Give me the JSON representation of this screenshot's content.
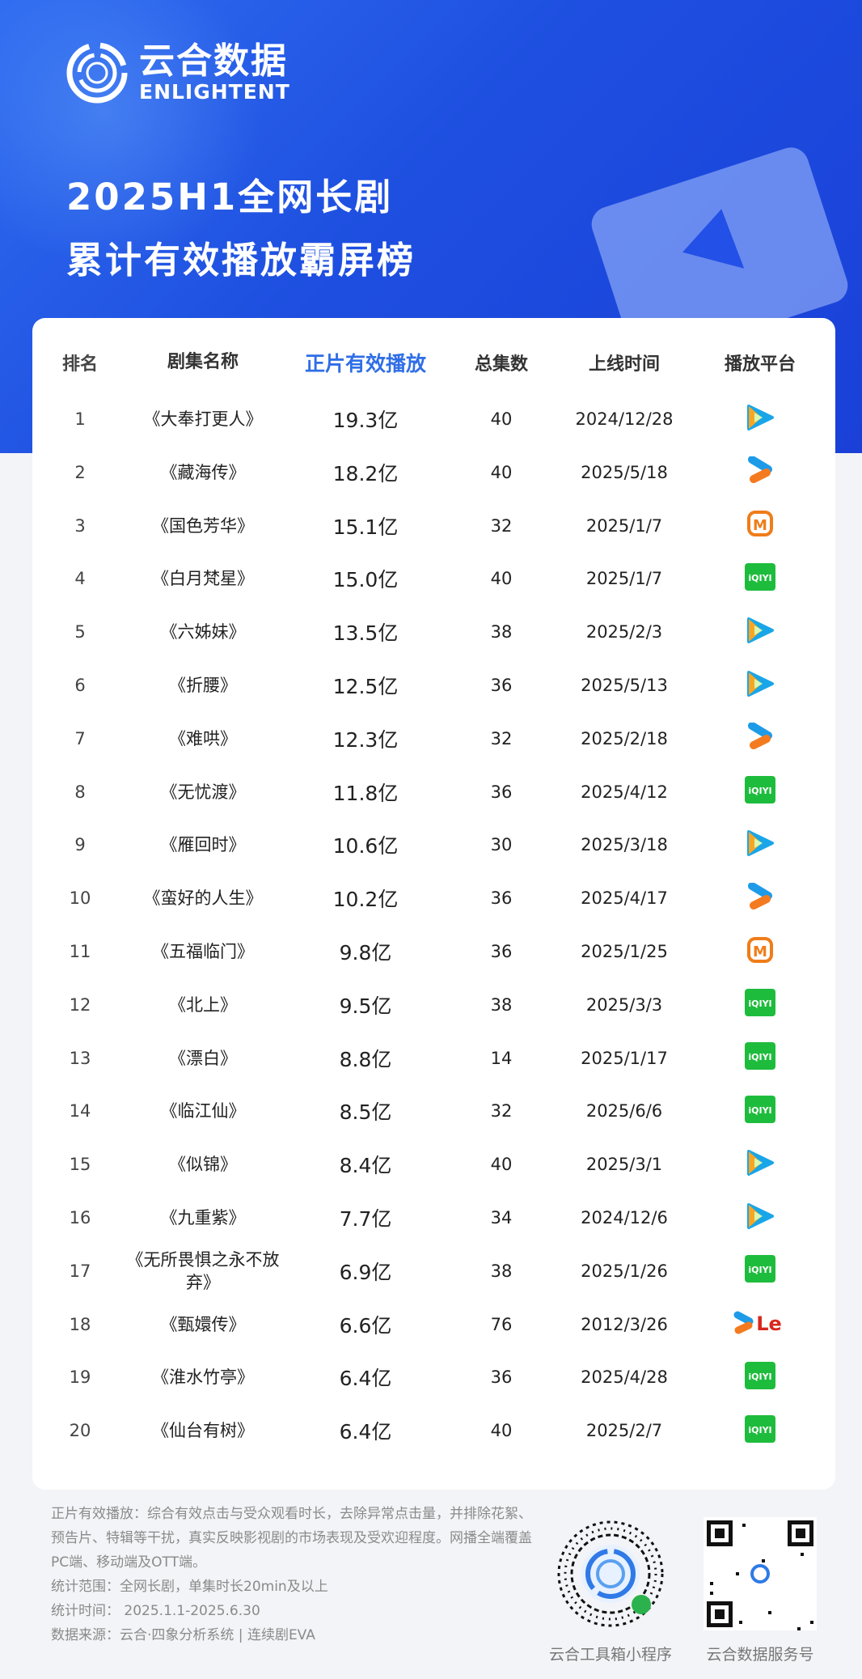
{
  "brand": {
    "name_cn": "云合数据",
    "name_en": "ENLIGHTENT"
  },
  "title": {
    "line1": "2025H1全网长剧",
    "line2": "累计有效播放霸屏榜"
  },
  "colors": {
    "header_bg": "#1e4fe0",
    "highlight": "#2f6ee6",
    "iqiyi": "#1ebc3c",
    "tencent": "#19a6e8",
    "youku": "#1e9be8",
    "mango": "#ef7d1a",
    "letv": "#d6281f"
  },
  "table": {
    "headers": [
      "排名",
      "剧集名称",
      "正片有效播放",
      "总集数",
      "上线时间",
      "播放平台"
    ],
    "rows": [
      {
        "rank": "1",
        "name": "《大奉打更人》",
        "plays": "19.3亿",
        "episodes": "40",
        "date": "2024/12/28",
        "platform": "tencent-video-icon"
      },
      {
        "rank": "2",
        "name": "《藏海传》",
        "plays": "18.2亿",
        "episodes": "40",
        "date": "2025/5/18",
        "platform": "youku-icon"
      },
      {
        "rank": "3",
        "name": "《国色芳华》",
        "plays": "15.1亿",
        "episodes": "32",
        "date": "2025/1/7",
        "platform": "mango-tv-icon"
      },
      {
        "rank": "4",
        "name": "《白月梵星》",
        "plays": "15.0亿",
        "episodes": "40",
        "date": "2025/1/7",
        "platform": "iqiyi-icon"
      },
      {
        "rank": "5",
        "name": "《六姊妹》",
        "plays": "13.5亿",
        "episodes": "38",
        "date": "2025/2/3",
        "platform": "tencent-video-icon"
      },
      {
        "rank": "6",
        "name": "《折腰》",
        "plays": "12.5亿",
        "episodes": "36",
        "date": "2025/5/13",
        "platform": "tencent-video-icon"
      },
      {
        "rank": "7",
        "name": "《难哄》",
        "plays": "12.3亿",
        "episodes": "32",
        "date": "2025/2/18",
        "platform": "youku-icon"
      },
      {
        "rank": "8",
        "name": "《无忧渡》",
        "plays": "11.8亿",
        "episodes": "36",
        "date": "2025/4/12",
        "platform": "iqiyi-icon"
      },
      {
        "rank": "9",
        "name": "《雁回时》",
        "plays": "10.6亿",
        "episodes": "30",
        "date": "2025/3/18",
        "platform": "tencent-video-icon"
      },
      {
        "rank": "10",
        "name": "《蛮好的人生》",
        "plays": "10.2亿",
        "episodes": "36",
        "date": "2025/4/17",
        "platform": "youku-icon"
      },
      {
        "rank": "11",
        "name": "《五福临门》",
        "plays": "9.8亿",
        "episodes": "36",
        "date": "2025/1/25",
        "platform": "mango-tv-icon"
      },
      {
        "rank": "12",
        "name": "《北上》",
        "plays": "9.5亿",
        "episodes": "38",
        "date": "2025/3/3",
        "platform": "iqiyi-icon"
      },
      {
        "rank": "13",
        "name": "《漂白》",
        "plays": "8.8亿",
        "episodes": "14",
        "date": "2025/1/17",
        "platform": "iqiyi-icon"
      },
      {
        "rank": "14",
        "name": "《临江仙》",
        "plays": "8.5亿",
        "episodes": "32",
        "date": "2025/6/6",
        "platform": "iqiyi-icon"
      },
      {
        "rank": "15",
        "name": "《似锦》",
        "plays": "8.4亿",
        "episodes": "40",
        "date": "2025/3/1",
        "platform": "tencent-video-icon"
      },
      {
        "rank": "16",
        "name": "《九重紫》",
        "plays": "7.7亿",
        "episodes": "34",
        "date": "2024/12/6",
        "platform": "tencent-video-icon"
      },
      {
        "rank": "17",
        "name": "《无所畏惧之永不放弃》",
        "plays": "6.9亿",
        "episodes": "38",
        "date": "2025/1/26",
        "platform": "iqiyi-icon"
      },
      {
        "rank": "18",
        "name": "《甄嬛传》",
        "plays": "6.6亿",
        "episodes": "76",
        "date": "2012/3/26",
        "platform": "youku-letv-icon"
      },
      {
        "rank": "19",
        "name": "《淮水竹亭》",
        "plays": "6.4亿",
        "episodes": "36",
        "date": "2025/4/28",
        "platform": "iqiyi-icon"
      },
      {
        "rank": "20",
        "name": "《仙台有树》",
        "plays": "6.4亿",
        "episodes": "40",
        "date": "2025/2/7",
        "platform": "iqiyi-icon"
      }
    ]
  },
  "iqiyi_text": "iQIYI",
  "letv_text": "Le",
  "mango_text": "M",
  "footer": {
    "definition": "正片有效播放：综合有效点击与受众观看时长，去除异常点击量，并排除花絮、预告片、特辑等干扰，真实反映影视剧的市场表现及受欢迎程度。网播全端覆盖PC端、移动端及OTT端。",
    "scope": "统计范围：全网长剧，单集时长20min及以上",
    "period": "统计时间： 2025.1.1-2025.6.30",
    "source": "数据来源：云合·四象分析系统 | 连续剧EVA",
    "qr1_label": "云合工具箱小程序",
    "qr2_label": "云合数据服务号"
  }
}
